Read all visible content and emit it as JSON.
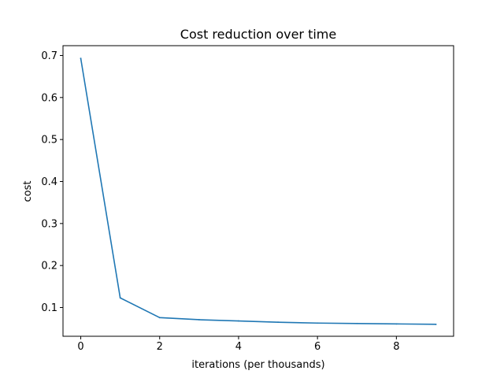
{
  "chart_data": {
    "type": "line",
    "title": "Cost reduction over time",
    "xlabel": "iterations (per thousands)",
    "ylabel": "cost",
    "xlim": [
      -0.45,
      9.45
    ],
    "ylim": [
      0.0316,
      0.7234
    ],
    "xticks": [
      0,
      2,
      4,
      6,
      8
    ],
    "xtick_labels": [
      "0",
      "2",
      "4",
      "6",
      "8"
    ],
    "yticks": [
      0.1,
      0.2,
      0.3,
      0.4,
      0.5,
      0.6,
      0.7
    ],
    "ytick_labels": [
      "0.1",
      "0.2",
      "0.3",
      "0.4",
      "0.5",
      "0.6",
      "0.7"
    ],
    "grid": false,
    "series": [
      {
        "color": "#1f77b4",
        "x": [
          0,
          1,
          2,
          3,
          4,
          5,
          6,
          7,
          8,
          9
        ],
        "y": [
          0.693,
          0.123,
          0.076,
          0.071,
          0.068,
          0.065,
          0.063,
          0.062,
          0.061,
          0.06
        ]
      }
    ]
  }
}
